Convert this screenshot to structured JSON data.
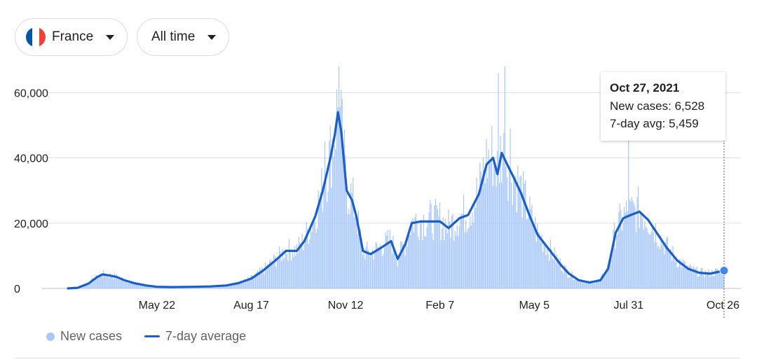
{
  "filters": {
    "country": "France",
    "period": "All time",
    "flag_colors": [
      "#0055a4",
      "#ffffff",
      "#ef4135"
    ]
  },
  "tooltip": {
    "date": "Oct 27, 2021",
    "new_cases_label": "New cases: 6,528",
    "avg_label": "7-day avg: 5,459"
  },
  "legend": {
    "bars_label": "New cases",
    "line_label": "7-day average"
  },
  "chart_data": {
    "type": "bar",
    "title": "",
    "xlabel": "",
    "ylabel": "",
    "ylim": [
      0,
      68000
    ],
    "yticks": [
      0,
      20000,
      40000,
      60000
    ],
    "ytick_labels": [
      "0",
      "20,000",
      "40,000",
      "60,000"
    ],
    "x_range": [
      "2020-03-01",
      "2021-10-27"
    ],
    "xticks": [
      {
        "date": "2020-05-22",
        "label": "May 22"
      },
      {
        "date": "2020-08-17",
        "label": "Aug 17"
      },
      {
        "date": "2020-11-12",
        "label": "Nov 12"
      },
      {
        "date": "2021-02-07",
        "label": "Feb 7"
      },
      {
        "date": "2021-05-05",
        "label": "May 5"
      },
      {
        "date": "2021-07-31",
        "label": "Jul 31"
      },
      {
        "date": "2021-10-26",
        "label": "Oct 26"
      }
    ],
    "colors": {
      "bars": "#a8c7fa",
      "line": "#1a5fc8",
      "grid": "#e0e0e0"
    },
    "grid": true,
    "legend_position": "bottom-left",
    "series": [
      {
        "name": "7-day average",
        "kind": "line",
        "points": [
          [
            "2020-03-01",
            0
          ],
          [
            "2020-03-10",
            200
          ],
          [
            "2020-03-20",
            1500
          ],
          [
            "2020-03-28",
            3500
          ],
          [
            "2020-04-02",
            4300
          ],
          [
            "2020-04-08",
            4000
          ],
          [
            "2020-04-15",
            3500
          ],
          [
            "2020-04-22",
            2500
          ],
          [
            "2020-05-01",
            1600
          ],
          [
            "2020-05-12",
            900
          ],
          [
            "2020-05-22",
            500
          ],
          [
            "2020-06-05",
            400
          ],
          [
            "2020-06-25",
            500
          ],
          [
            "2020-07-10",
            600
          ],
          [
            "2020-07-25",
            900
          ],
          [
            "2020-08-05",
            1600
          ],
          [
            "2020-08-17",
            3000
          ],
          [
            "2020-08-28",
            5500
          ],
          [
            "2020-09-08",
            8500
          ],
          [
            "2020-09-18",
            11500
          ],
          [
            "2020-09-28",
            11500
          ],
          [
            "2020-10-05",
            14500
          ],
          [
            "2020-10-15",
            22000
          ],
          [
            "2020-10-22",
            30000
          ],
          [
            "2020-10-29",
            40000
          ],
          [
            "2020-11-02",
            47000
          ],
          [
            "2020-11-05",
            54000
          ],
          [
            "2020-11-08",
            48000
          ],
          [
            "2020-11-13",
            30000
          ],
          [
            "2020-11-18",
            27000
          ],
          [
            "2020-11-22",
            22000
          ],
          [
            "2020-11-28",
            11500
          ],
          [
            "2020-12-05",
            10500
          ],
          [
            "2020-12-15",
            12500
          ],
          [
            "2020-12-24",
            14500
          ],
          [
            "2020-12-30",
            9000
          ],
          [
            "2021-01-06",
            13500
          ],
          [
            "2021-01-12",
            20000
          ],
          [
            "2021-01-20",
            20500
          ],
          [
            "2021-01-30",
            20500
          ],
          [
            "2021-02-07",
            20500
          ],
          [
            "2021-02-15",
            18500
          ],
          [
            "2021-02-25",
            21500
          ],
          [
            "2021-03-05",
            22500
          ],
          [
            "2021-03-15",
            29000
          ],
          [
            "2021-03-22",
            38000
          ],
          [
            "2021-03-28",
            40000
          ],
          [
            "2021-04-01",
            35000
          ],
          [
            "2021-04-05",
            41500
          ],
          [
            "2021-04-10",
            38000
          ],
          [
            "2021-04-16",
            34000
          ],
          [
            "2021-04-23",
            29000
          ],
          [
            "2021-05-01",
            22000
          ],
          [
            "2021-05-08",
            16500
          ],
          [
            "2021-05-15",
            13500
          ],
          [
            "2021-05-22",
            10500
          ],
          [
            "2021-05-30",
            7000
          ],
          [
            "2021-06-06",
            4500
          ],
          [
            "2021-06-15",
            2500
          ],
          [
            "2021-06-25",
            1800
          ],
          [
            "2021-07-05",
            2500
          ],
          [
            "2021-07-12",
            6000
          ],
          [
            "2021-07-19",
            17000
          ],
          [
            "2021-07-26",
            21500
          ],
          [
            "2021-08-02",
            22500
          ],
          [
            "2021-08-10",
            23500
          ],
          [
            "2021-08-18",
            21000
          ],
          [
            "2021-08-26",
            17000
          ],
          [
            "2021-09-04",
            12500
          ],
          [
            "2021-09-14",
            8500
          ],
          [
            "2021-09-24",
            6000
          ],
          [
            "2021-10-04",
            4800
          ],
          [
            "2021-10-14",
            4500
          ],
          [
            "2021-10-27",
            5459
          ]
        ]
      },
      {
        "name": "New cases",
        "kind": "bars",
        "spikes": [
          [
            "2020-11-06",
            68000
          ],
          [
            "2020-11-04",
            61000
          ],
          [
            "2020-10-24",
            45000
          ],
          [
            "2021-04-02",
            66000
          ],
          [
            "2021-04-08",
            68000
          ],
          [
            "2021-04-13",
            49000
          ],
          [
            "2021-07-31",
            46000
          ],
          [
            "2021-10-27",
            6528
          ]
        ]
      }
    ]
  }
}
